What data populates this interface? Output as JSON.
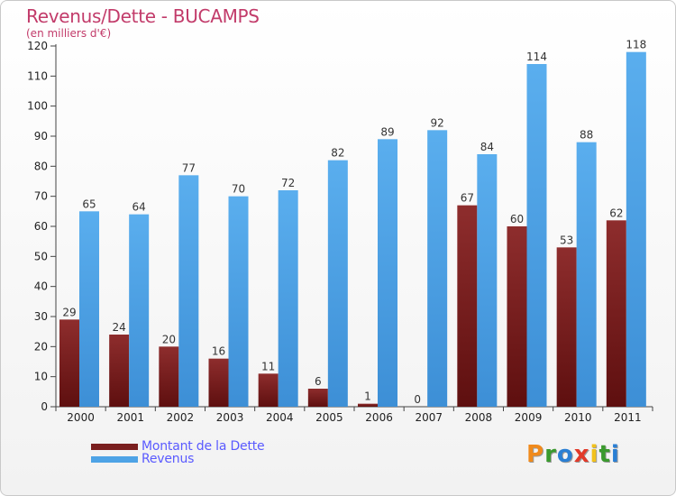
{
  "header": {
    "title": "Revenus/Dette - BUCAMPS",
    "subtitle": "(en milliers d'€)"
  },
  "colors": {
    "debt": "#7a1f1f",
    "revenue": "#4ea3e6",
    "title": "#c23b6a",
    "legend_text": "#5a5aff"
  },
  "legend": {
    "debt_label": "Montant de la Dette",
    "revenue_label": "Revenus"
  },
  "logo": {
    "text": "Proxiti",
    "letter_colors": [
      "#f08a1c",
      "#3a9a2e",
      "#2a7fd4",
      "#e23a2a",
      "#f2c21c",
      "#3a9a2e",
      "#2a7fd4"
    ]
  },
  "chart_data": {
    "type": "bar",
    "title": "Revenus/Dette - BUCAMPS",
    "subtitle": "(en milliers d'€)",
    "categories": [
      "2000",
      "2001",
      "2002",
      "2003",
      "2004",
      "2005",
      "2006",
      "2007",
      "2008",
      "2009",
      "2010",
      "2011"
    ],
    "series": [
      {
        "name": "Montant de la Dette",
        "values": [
          29,
          24,
          20,
          16,
          11,
          6,
          1,
          0,
          67,
          60,
          53,
          62
        ]
      },
      {
        "name": "Revenus",
        "values": [
          65,
          64,
          77,
          70,
          72,
          82,
          89,
          92,
          84,
          114,
          88,
          118
        ]
      }
    ],
    "ylim": [
      0,
      120
    ],
    "yticks": [
      0,
      10,
      20,
      30,
      40,
      50,
      60,
      70,
      80,
      90,
      100,
      110,
      120
    ],
    "grid": false,
    "legend_position": "bottom-left"
  }
}
